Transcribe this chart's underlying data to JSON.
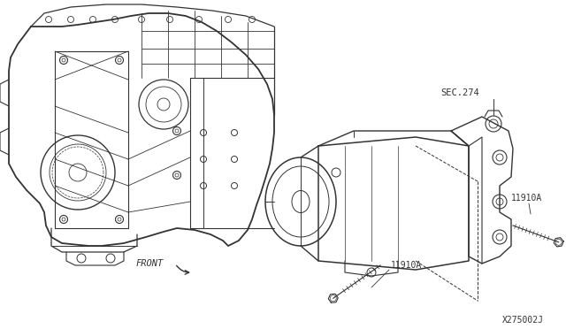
{
  "bg_color": "#ffffff",
  "line_color": "#333333",
  "diagram_id": "X275002J",
  "sec274_label": "SEC.274",
  "label_11910A_1": "11910A",
  "label_11910A_2": "11910A",
  "front_label": "FRONT",
  "fig_width": 6.4,
  "fig_height": 3.72,
  "dpi": 100
}
